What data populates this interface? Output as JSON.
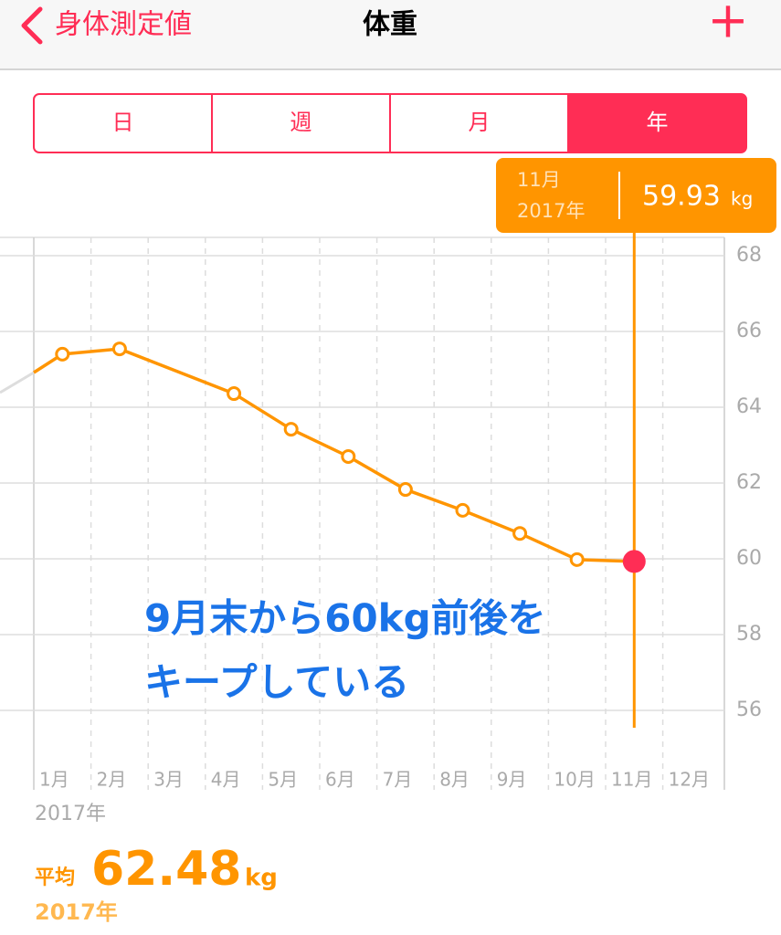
{
  "nav": {
    "back": "身体測定値",
    "title": "体重",
    "add": "+"
  },
  "segments": [
    "日",
    "週",
    "月",
    "年"
  ],
  "tooltip": {
    "month": "11月",
    "year": "2017年",
    "value": "59.93",
    "unit": "kg"
  },
  "chart_data": {
    "type": "line",
    "categories": [
      "1月",
      "2月",
      "3月",
      "4月",
      "5月",
      "6月",
      "7月",
      "8月",
      "9月",
      "10月",
      "11月",
      "12月"
    ],
    "values": [
      65.4,
      65.54,
      null,
      64.36,
      63.42,
      62.7,
      61.83,
      61.28,
      60.67,
      59.98,
      59.93,
      null
    ],
    "color": "#ff9500",
    "highlight_color": "#ff2d55",
    "ylim": [
      56,
      68
    ],
    "yticks": [
      56,
      58,
      60,
      62,
      64,
      66,
      68
    ],
    "grid": true,
    "annotation": [
      "9月末から60kg前後を",
      "キープしている"
    ]
  },
  "summary": {
    "year": "2017年",
    "avg_label": "平均",
    "avg_value": "62.48",
    "unit": "kg",
    "period": "2017年"
  }
}
